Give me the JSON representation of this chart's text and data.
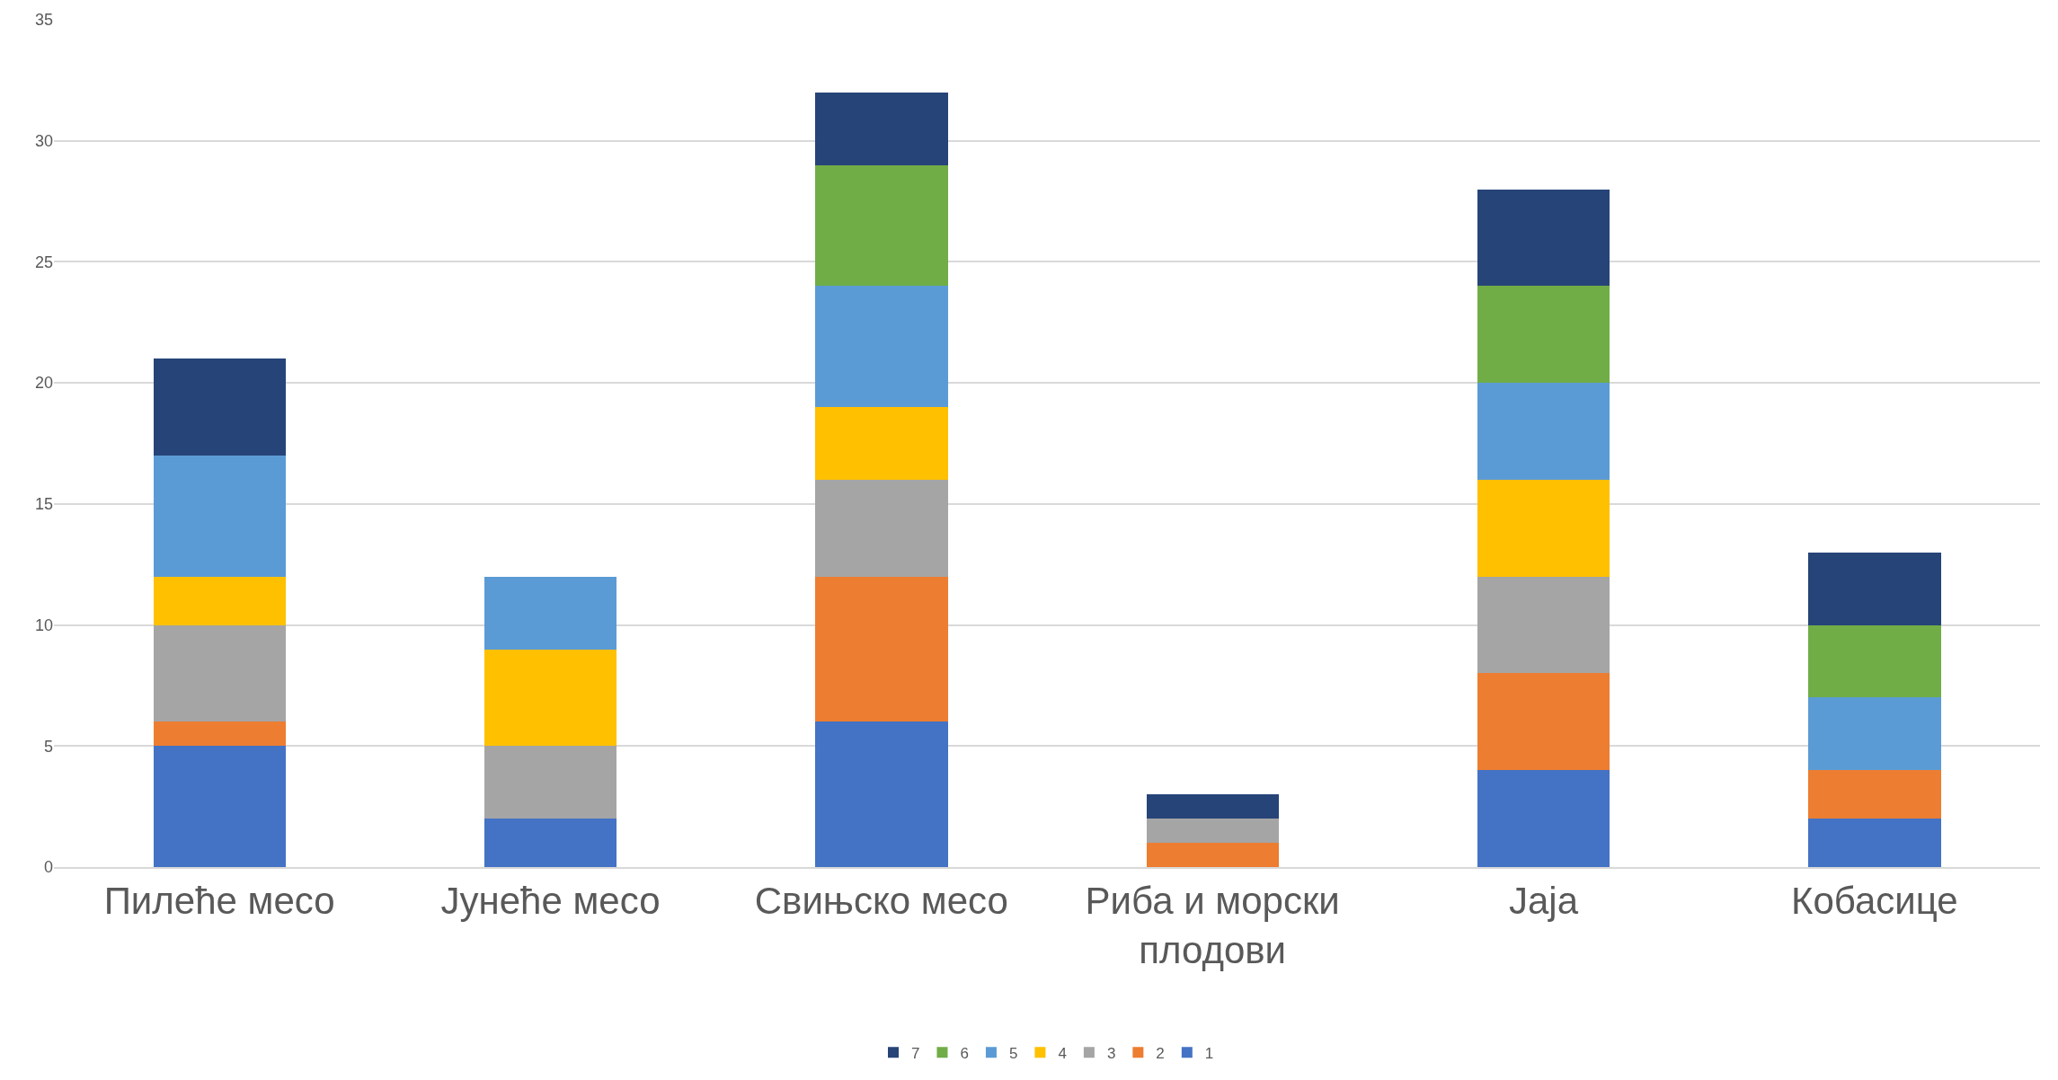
{
  "chart_data": {
    "type": "bar",
    "stacked": true,
    "categories": [
      "Пилеће месо",
      "Јунеће месо",
      "Свињско месо",
      "Риба и морски плодови",
      "Јаја",
      "Кобасице"
    ],
    "series": [
      {
        "name": "1",
        "color": "#4472c4",
        "values": [
          5,
          2,
          6,
          0,
          4,
          2
        ]
      },
      {
        "name": "2",
        "color": "#ed7d31",
        "values": [
          1,
          0,
          6,
          1,
          4,
          2
        ]
      },
      {
        "name": "3",
        "color": "#a5a5a5",
        "values": [
          4,
          3,
          4,
          1,
          4,
          0
        ]
      },
      {
        "name": "4",
        "color": "#ffc000",
        "values": [
          2,
          4,
          3,
          0,
          4,
          0
        ]
      },
      {
        "name": "5",
        "color": "#5b9bd5",
        "values": [
          5,
          3,
          5,
          0,
          4,
          3
        ]
      },
      {
        "name": "6",
        "color": "#70ad47",
        "values": [
          0,
          0,
          5,
          0,
          4,
          3
        ]
      },
      {
        "name": "7",
        "color": "#264478",
        "values": [
          4,
          0,
          3,
          1,
          4,
          3
        ]
      }
    ],
    "ylim": [
      0,
      35
    ],
    "yticks": [
      0,
      5,
      10,
      15,
      20,
      25,
      30,
      35
    ],
    "grid": "y",
    "legend": "bottom"
  }
}
